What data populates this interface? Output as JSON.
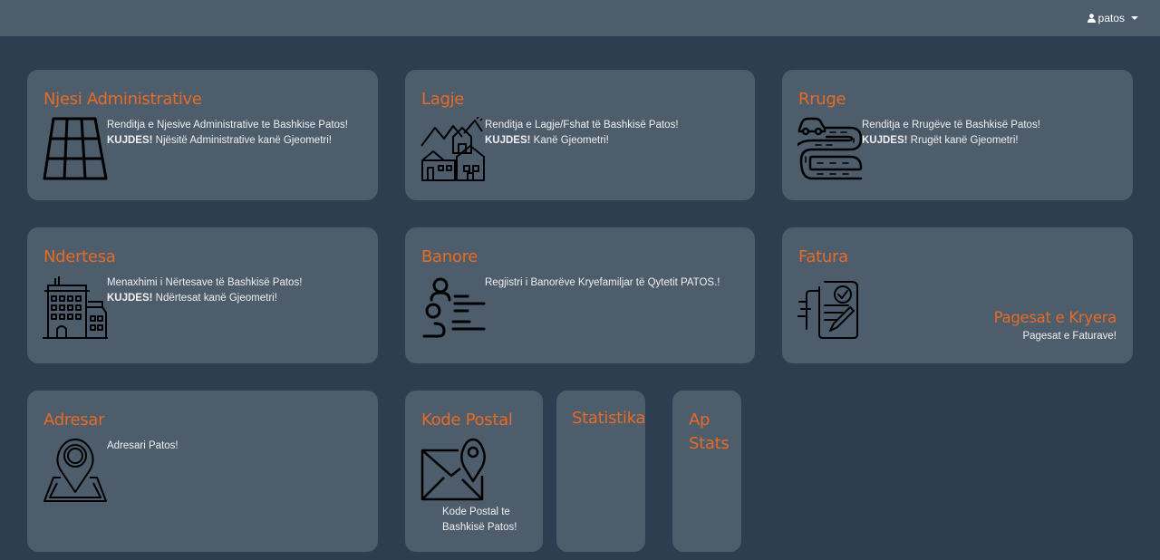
{
  "header": {
    "user_name": "patos"
  },
  "colors": {
    "background": "#2c3e50",
    "card": "#4e5d6c",
    "accent": "#e66b24"
  },
  "cards": {
    "njesi": {
      "title": "Njesi Administrative",
      "icon": "grid-parcel-icon",
      "line1": "Renditja e Njesive Administrative te Bashkise Patos!",
      "warning_label": "KUJDES!",
      "warning_text": " Njësitë Administrative kanë Gjeometri!"
    },
    "lagje": {
      "title": "Lagje",
      "icon": "village-houses-icon",
      "line1": "Renditja e Lagje/Fshat të Bashkisë Patos!",
      "warning_label": "KUJDES!",
      "warning_text": " Kanë Gjeometri!"
    },
    "rruge": {
      "title": "Rruge",
      "icon": "road-car-icon",
      "line1": "Renditja e Rrugëve të Bashkisë Patos!",
      "warning_label": "KUJDES!",
      "warning_text": " Rrugët kanë Gjeometri!"
    },
    "ndertesa": {
      "title": "Ndertesa",
      "icon": "buildings-icon",
      "line1": "Menaxhimi i Nërtesave të Bashkisë Patos!",
      "warning_label": "KUJDES!",
      "warning_text": " Ndërtesat kanë Gjeometri!"
    },
    "banore": {
      "title": "Banore",
      "icon": "residents-list-icon",
      "line1": "Regjistri i Banorëve Kryefamiljar të Qytetit PATOS.!"
    },
    "fatura": {
      "title": "Fatura",
      "icon": "invoice-icon",
      "sub_title": "Pagesat e Kryera",
      "sub_text": "Pagesat e Faturave!"
    },
    "adresar": {
      "title": "Adresar",
      "icon": "map-pin-icon",
      "line1": "Adresari Patos!"
    },
    "kode_postal": {
      "title": "Kode Postal",
      "icon": "postal-envelope-icon",
      "line1": "Kode Postal te",
      "line2": "Bashkisë Patos!"
    },
    "statistika": {
      "title": "Statistika"
    },
    "ap_stats": {
      "title_line1": "Ap",
      "title_line2": "Stats"
    }
  }
}
